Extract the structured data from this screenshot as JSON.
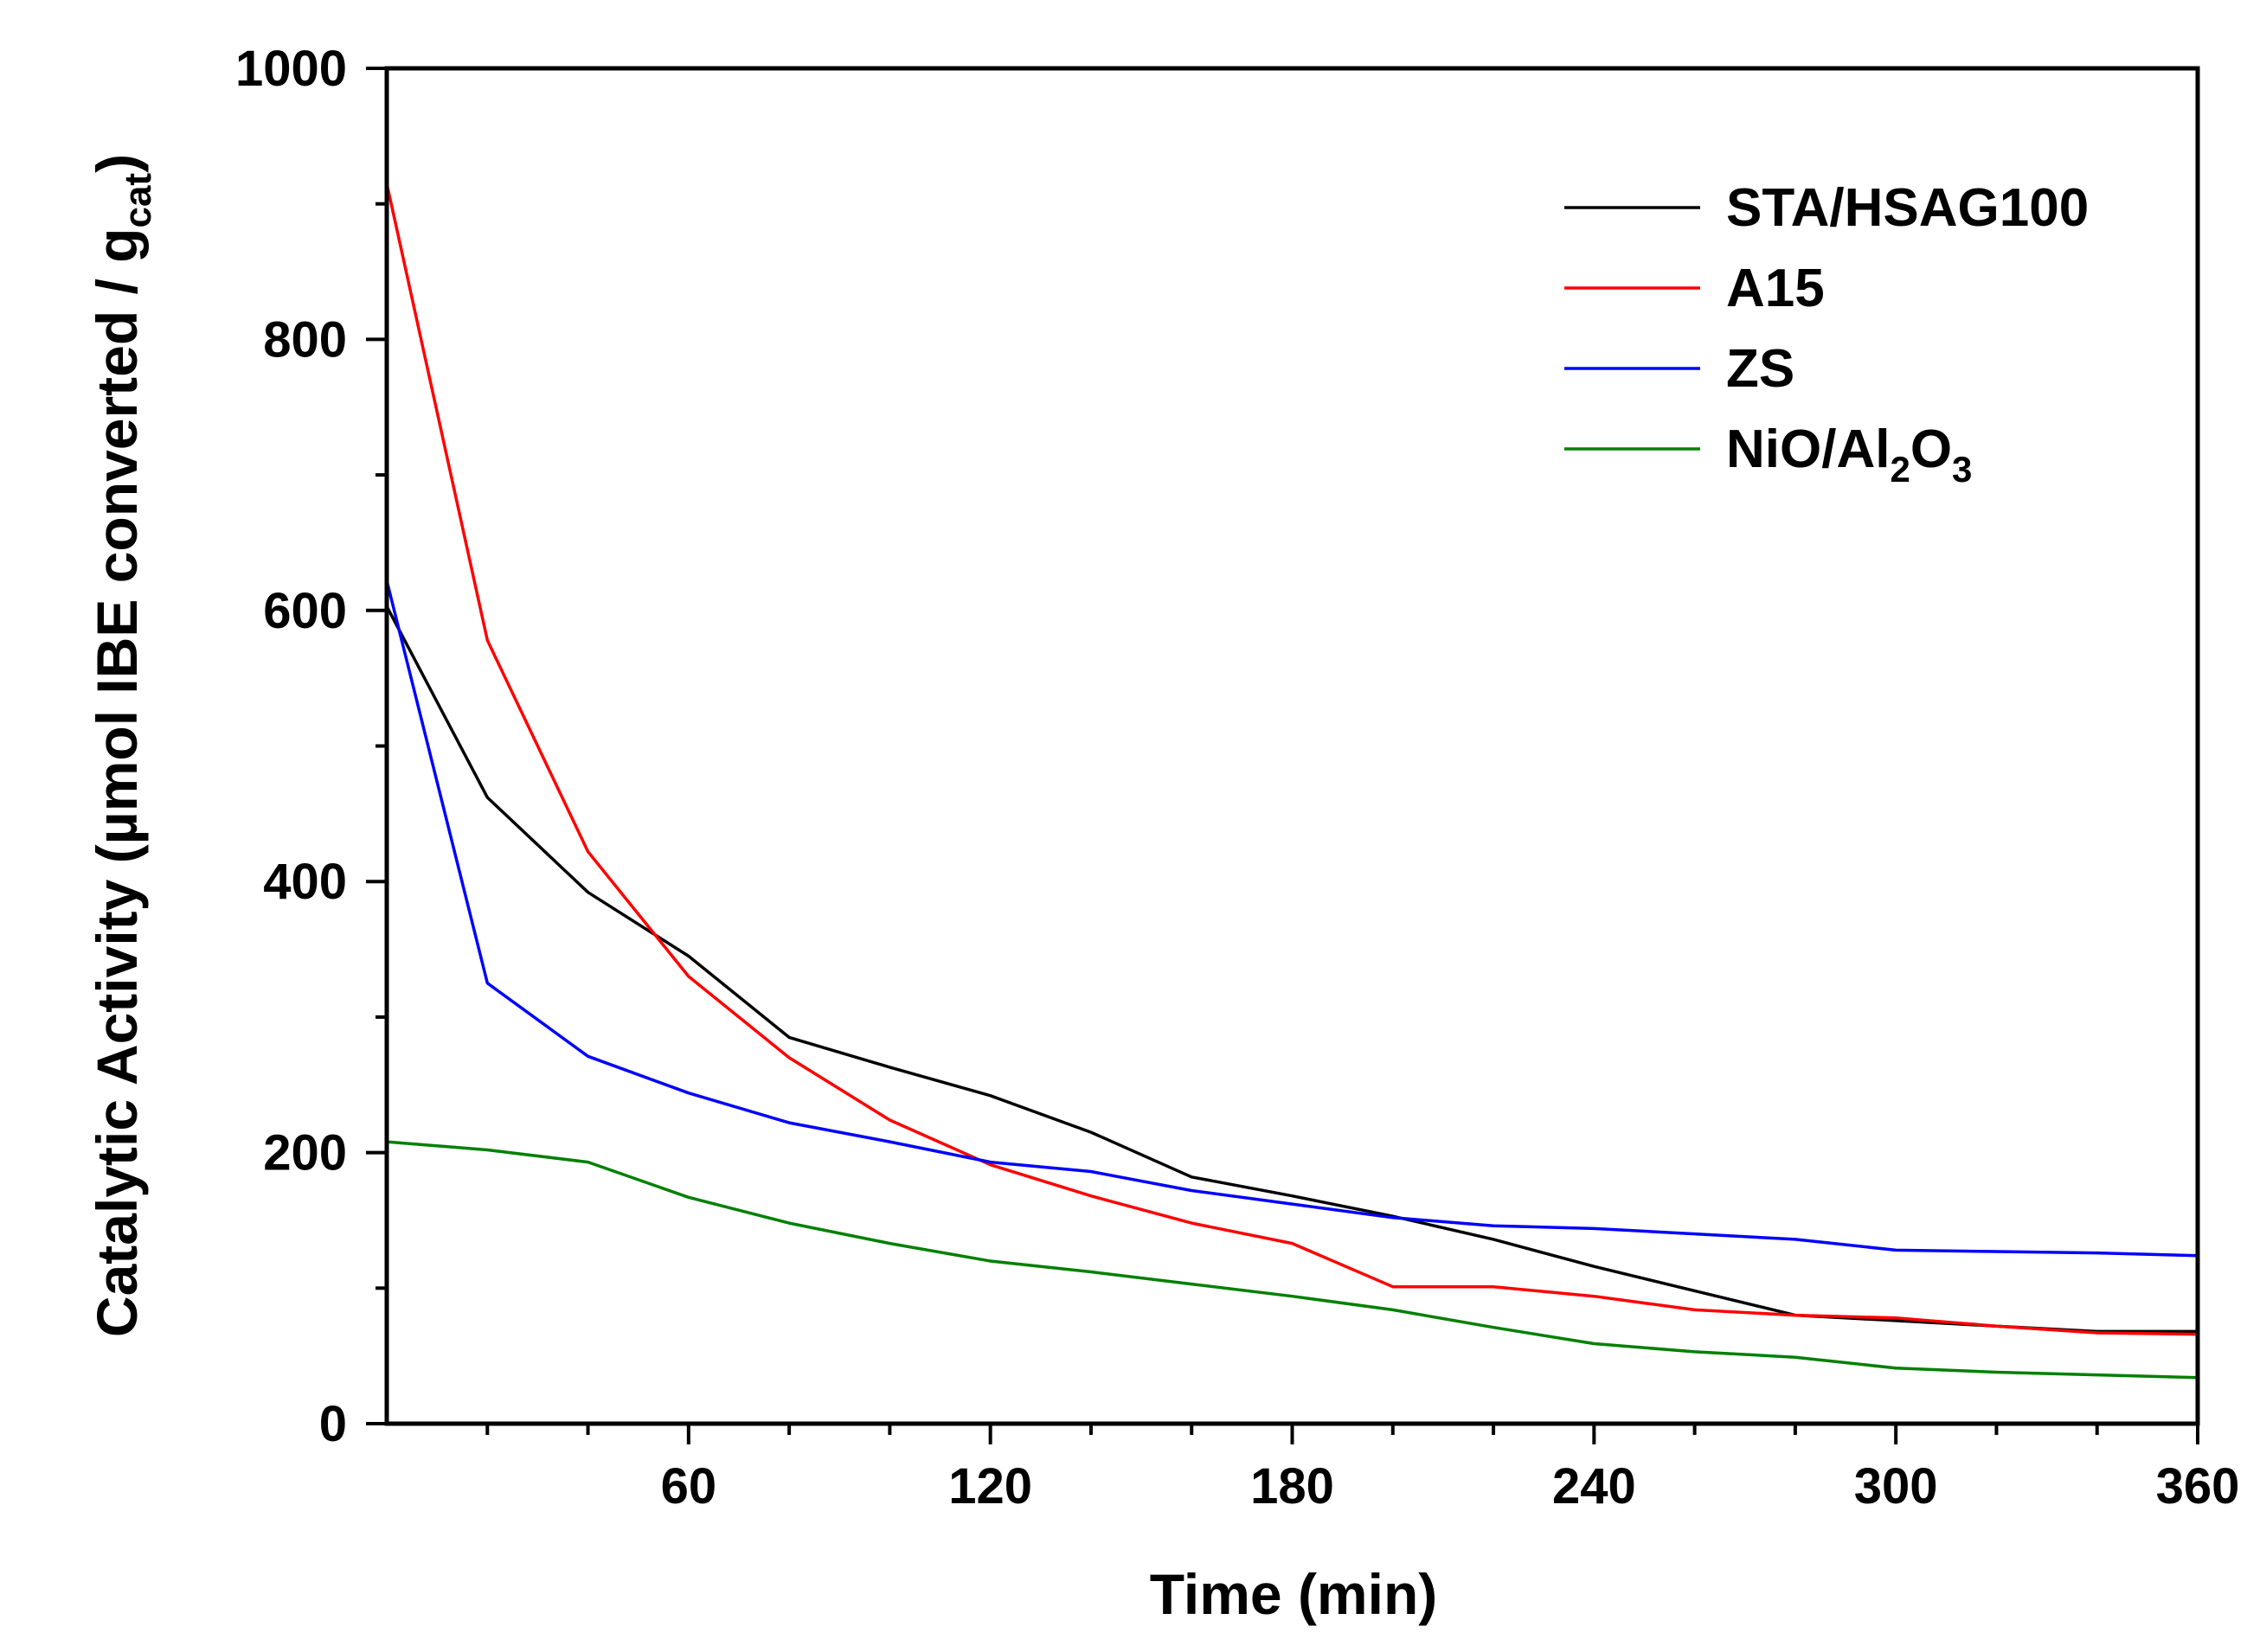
{
  "chart_data": {
    "type": "line",
    "title": "",
    "xlabel": "Time (min)",
    "ylabel": {
      "main": "Catalytic Activity (µmol IBE converted / g",
      "sub": "cat",
      "close": ")"
    },
    "xlim": [
      0,
      360
    ],
    "ylim": [
      0,
      1000
    ],
    "x_ticks": [
      60,
      120,
      180,
      240,
      300,
      360
    ],
    "x_minor_ticks": [
      20,
      40,
      80,
      100,
      140,
      160,
      200,
      220,
      260,
      280,
      320,
      340
    ],
    "y_ticks": [
      0,
      200,
      400,
      600,
      800,
      1000
    ],
    "y_minor_ticks": [
      100,
      300,
      500,
      700,
      900
    ],
    "grid": false,
    "legend_position": "top-right",
    "series": [
      {
        "name": "STA/HSAG100",
        "label_parts": [
          {
            "t": "STA/HSAG100"
          }
        ],
        "color": "#000000",
        "x": [
          0,
          20,
          40,
          60,
          80,
          100,
          120,
          140,
          160,
          180,
          200,
          220,
          240,
          260,
          280,
          300,
          320,
          340,
          360
        ],
        "y": [
          603,
          462,
          392,
          345,
          285,
          263,
          242,
          215,
          182,
          168,
          153,
          136,
          116,
          98,
          80,
          76,
          72,
          68,
          68
        ]
      },
      {
        "name": "A15",
        "label_parts": [
          {
            "t": "A15"
          }
        ],
        "color": "#ff0000",
        "x": [
          0,
          20,
          40,
          60,
          80,
          100,
          120,
          140,
          160,
          180,
          200,
          220,
          240,
          260,
          280,
          300,
          320,
          340,
          360
        ],
        "y": [
          915,
          578,
          422,
          330,
          270,
          224,
          191,
          168,
          148,
          133,
          101,
          101,
          94,
          84,
          80,
          78,
          72,
          67,
          66
        ]
      },
      {
        "name": "ZS",
        "label_parts": [
          {
            "t": "ZS"
          }
        ],
        "color": "#0000ff",
        "x": [
          0,
          20,
          40,
          60,
          80,
          100,
          120,
          140,
          160,
          180,
          200,
          220,
          240,
          260,
          280,
          300,
          320,
          340,
          360
        ],
        "y": [
          622,
          325,
          271,
          244,
          222,
          208,
          193,
          186,
          172,
          162,
          152,
          146,
          144,
          140,
          136,
          128,
          127,
          126,
          124
        ]
      },
      {
        "name": "NiO/Al2O3",
        "label_parts": [
          {
            "t": "NiO/Al"
          },
          {
            "t": "2",
            "sub": true
          },
          {
            "t": "O"
          },
          {
            "t": "3",
            "sub": true
          }
        ],
        "color": "#008000",
        "x": [
          0,
          20,
          40,
          60,
          80,
          100,
          120,
          140,
          160,
          180,
          200,
          220,
          240,
          260,
          280,
          300,
          320,
          340,
          360
        ],
        "y": [
          208,
          202,
          193,
          167,
          148,
          133,
          120,
          112,
          103,
          94,
          84,
          71,
          59,
          53,
          49,
          41,
          38,
          36,
          34
        ]
      }
    ]
  }
}
